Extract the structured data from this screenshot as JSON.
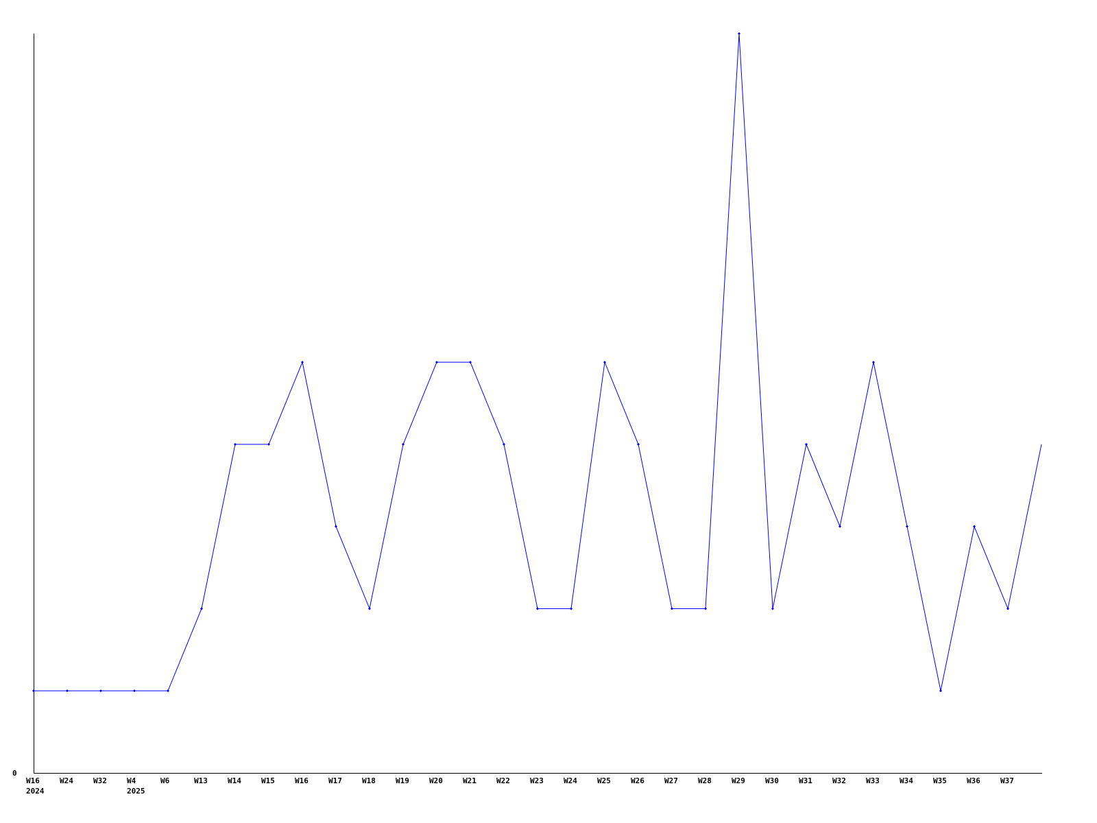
{
  "chart_data": {
    "type": "line",
    "title": "",
    "xlabel": "",
    "ylabel": "",
    "ylim": [
      0,
      9
    ],
    "y_tick_labels": [
      "0"
    ],
    "grid": false,
    "legend": "none",
    "line_color": "#0000ff",
    "axis_color": "#000000",
    "categories": [
      "W16",
      "W24",
      "W32",
      "W4",
      "W6",
      "W13",
      "W14",
      "W15",
      "W16",
      "W17",
      "W18",
      "W19",
      "W20",
      "W21",
      "W22",
      "W23",
      "W24",
      "W25",
      "W26",
      "W27",
      "W28",
      "W29",
      "W30",
      "W31",
      "W32",
      "W33",
      "W34",
      "W35",
      "W36",
      "W37",
      ""
    ],
    "category_sublabels": [
      "2024",
      "",
      "",
      "2025",
      "",
      "",
      "",
      "",
      "",
      "",
      "",
      "",
      "",
      "",
      "",
      "",
      "",
      "",
      "",
      "",
      "",
      "",
      "",
      "",
      "",
      "",
      "",
      "",
      "",
      "",
      ""
    ],
    "series": [
      {
        "values": [
          1,
          1,
          1,
          1,
          1,
          2,
          4,
          4,
          5,
          3,
          2,
          4,
          5,
          5,
          4,
          2,
          2,
          5,
          4,
          2,
          2,
          9,
          2,
          4,
          3,
          5,
          3,
          1,
          3,
          2,
          4
        ]
      }
    ]
  }
}
